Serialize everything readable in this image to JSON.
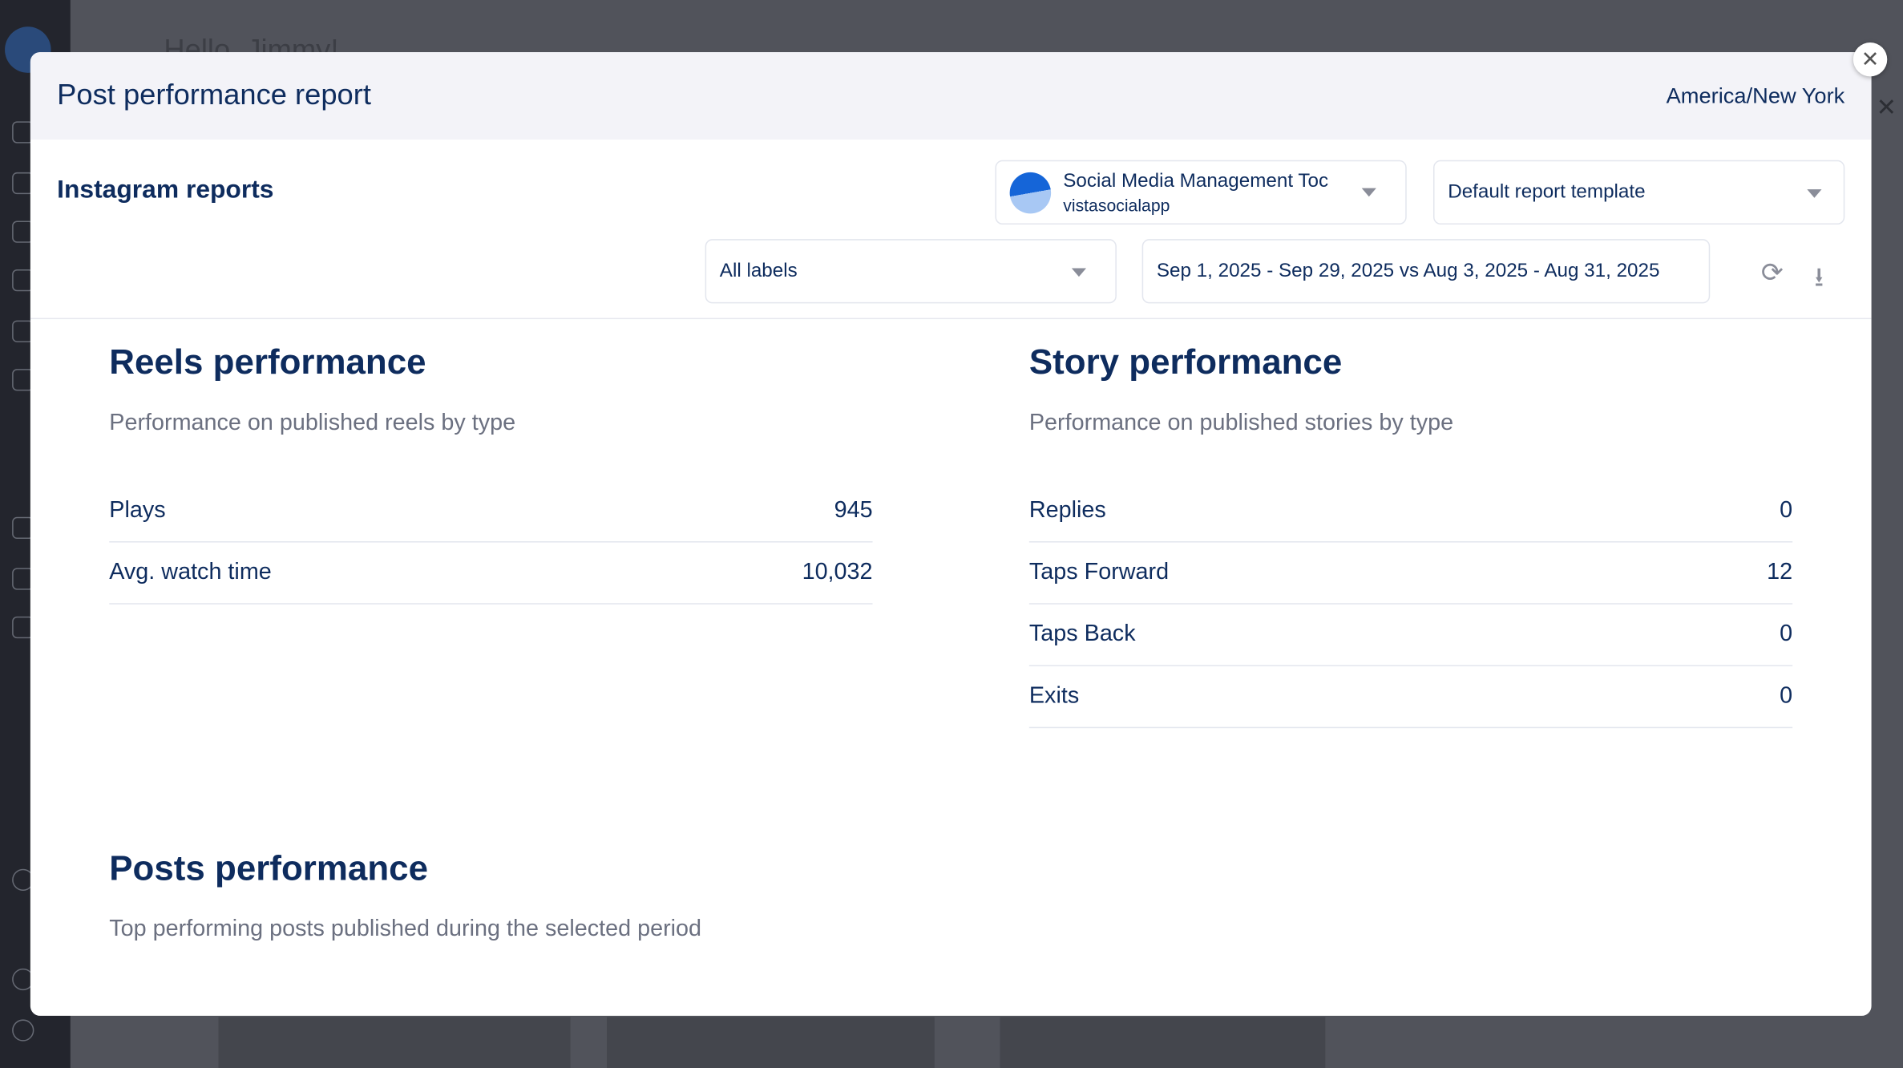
{
  "background": {
    "greeting": "Hello, Jimmy!"
  },
  "modal": {
    "title": "Post performance report",
    "timezone": "America/New York",
    "subtitle": "Instagram reports",
    "profile_select": {
      "name": "Social Media Management Toc",
      "handle": "vistasocialapp"
    },
    "template_select": "Default report template",
    "labels_select": "All labels",
    "date_range": "Sep 1, 2025 - Sep 29, 2025 vs Aug 3, 2025 - Aug 31, 2025",
    "icons": {
      "refresh": "refresh-icon",
      "download": "download-icon",
      "close": "close-icon"
    }
  },
  "reels": {
    "title": "Reels performance",
    "description": "Performance on published reels by type",
    "rows": [
      {
        "label": "Plays",
        "value": "945"
      },
      {
        "label": "Avg. watch time",
        "value": "10,032"
      }
    ]
  },
  "story": {
    "title": "Story performance",
    "description": "Performance on published stories by type",
    "rows": [
      {
        "label": "Replies",
        "value": "0"
      },
      {
        "label": "Taps Forward",
        "value": "12"
      },
      {
        "label": "Taps Back",
        "value": "0"
      },
      {
        "label": "Exits",
        "value": "0"
      }
    ]
  },
  "posts": {
    "title": "Posts performance",
    "description": "Top performing posts published during the selected period"
  },
  "colors": {
    "primary_text": "#0e2c5e",
    "overlay": "#51535b"
  }
}
